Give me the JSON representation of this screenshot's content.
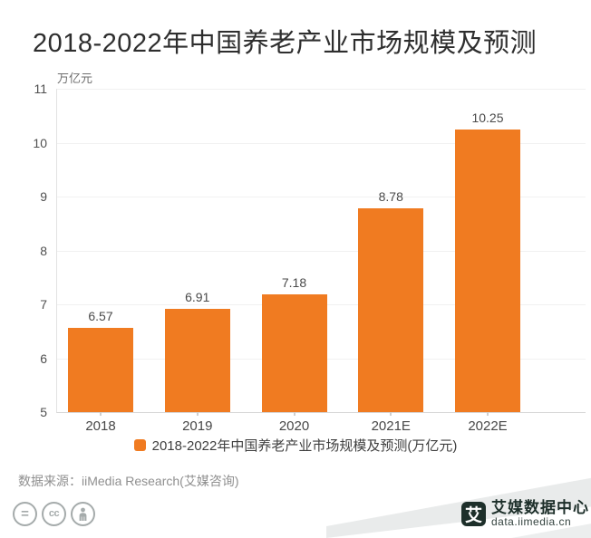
{
  "title": "2018-2022年中国养老产业市场规模及预测",
  "chart_data": {
    "type": "bar",
    "title": "2018-2022年中国养老产业市场规模及预测",
    "unit_label": "万亿元",
    "categories": [
      "2018",
      "2019",
      "2020",
      "2021E",
      "2022E"
    ],
    "values": [
      6.57,
      6.91,
      7.18,
      8.78,
      10.25
    ],
    "value_labels": [
      "6.57",
      "6.91",
      "7.18",
      "8.78",
      "10.25"
    ],
    "ylim": [
      5,
      11
    ],
    "yticks": [
      5,
      6,
      7,
      8,
      9,
      10,
      11
    ],
    "grid": true,
    "legend_label": "2018-2022年中国养老产业市场规模及预测(万亿元)",
    "legend_position": "bottom",
    "bar_color": "#F07B21"
  },
  "source_note": "数据来源：iiMedia Research(艾媒咨询)",
  "footer": {
    "license_icons": [
      {
        "name": "equals-icon",
        "glyph": "="
      },
      {
        "name": "cc-icon",
        "glyph": "cc"
      },
      {
        "name": "person-icon",
        "glyph": "person"
      }
    ],
    "brand": {
      "logo_char": "艾",
      "name": "艾媒数据中心",
      "url": "data.iimedia.cn"
    }
  },
  "colors": {
    "bar": "#F07B21",
    "title_text": "#2E2E2E",
    "axis_text": "#4F4F4F",
    "source_text": "#8F8F8F",
    "license_icon": "#A5ABAB",
    "brand_dark": "#1D2F2A"
  }
}
